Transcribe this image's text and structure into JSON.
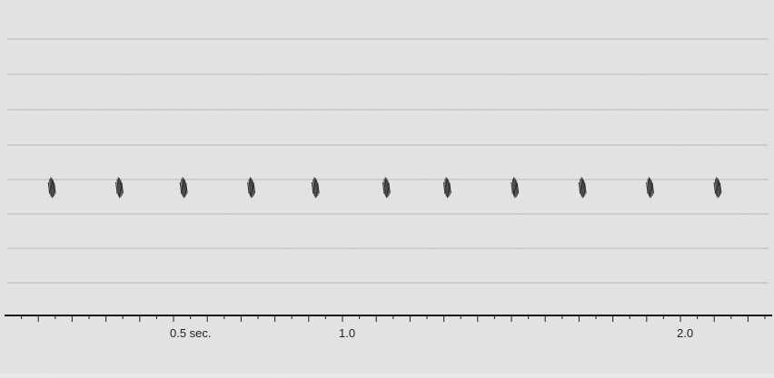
{
  "chart_data": {
    "type": "scatter",
    "title": "",
    "xlabel": "",
    "ylabel": "",
    "grid": true,
    "x_axis": {
      "range": [
        0.0,
        2.25
      ],
      "tick_labels": [
        {
          "value": 0.5,
          "text": "0.5 sec."
        },
        {
          "value": 1.0,
          "text": "1.0"
        },
        {
          "value": 2.0,
          "text": "2.0"
        }
      ],
      "major_tick_step": 0.1,
      "minor_tick_step": 0.05
    },
    "series": [
      {
        "marker": "pulse-burst",
        "x": [
          0.14,
          0.34,
          0.53,
          0.73,
          0.92,
          1.13,
          1.31,
          1.51,
          1.71,
          1.91,
          2.11
        ]
      }
    ],
    "colors": {
      "background": "#e6e6e6",
      "gridline": "#7a7a7a",
      "axis": "#1a1a1a",
      "pulse": "#2b2b2b",
      "label": "#1e1e1e"
    }
  }
}
